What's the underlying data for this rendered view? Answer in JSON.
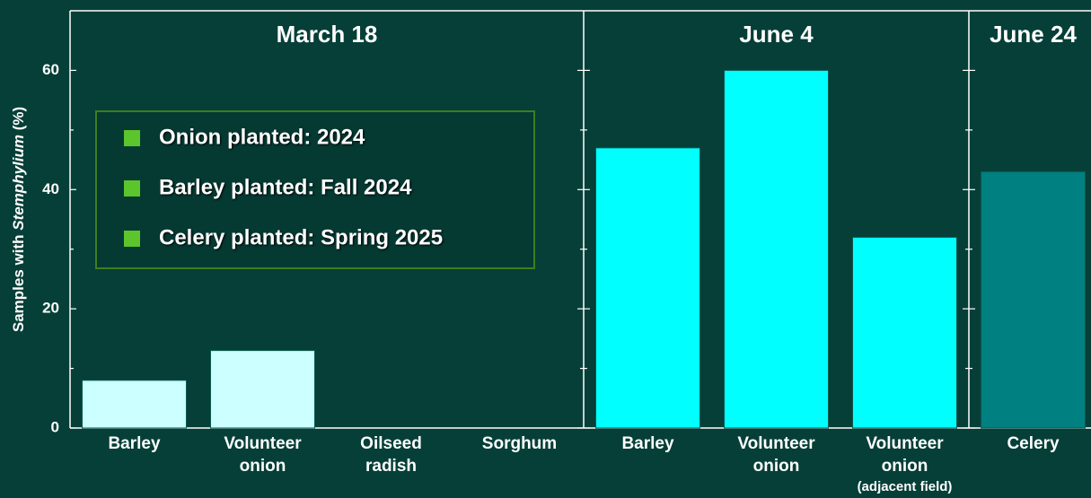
{
  "chart_data": {
    "type": "bar",
    "ylabel": [
      {
        "text": "Samples with "
      },
      {
        "text": "Stemphylium",
        "italic": true
      },
      {
        "text": " (%)"
      }
    ],
    "ylim": [
      0,
      70
    ],
    "yticks": [
      0,
      20,
      40,
      60
    ],
    "yminorticks": [
      10,
      30,
      50
    ],
    "panels": [
      {
        "title": "March 18",
        "color": "#ccffff",
        "categories": [
          [
            "Barley"
          ],
          [
            "Volunteer",
            "onion"
          ],
          [
            "Oilseed",
            "radish"
          ],
          [
            "Sorghum"
          ]
        ],
        "values": [
          8,
          13,
          0,
          0
        ]
      },
      {
        "title": "June 4",
        "color": "#00ffff",
        "categories": [
          [
            "Barley"
          ],
          [
            "Volunteer",
            "onion"
          ],
          [
            "Volunteer",
            "onion",
            "(adjacent field)"
          ]
        ],
        "values": [
          47,
          60,
          32
        ]
      },
      {
        "title": "June 24",
        "color": "#008080",
        "categories": [
          [
            "Celery"
          ]
        ],
        "values": [
          43
        ]
      }
    ],
    "annotations": [
      "Onion planted: 2024",
      "Barley planted: Fall 2024",
      "Celery planted: Spring 2025"
    ]
  }
}
